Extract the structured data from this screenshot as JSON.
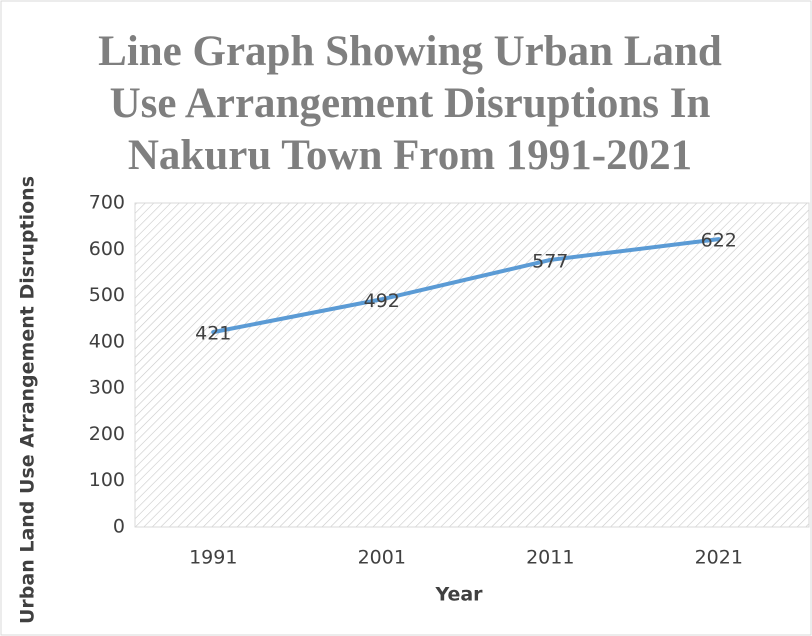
{
  "chart_data": {
    "type": "line",
    "title": "Line Graph Showing Urban Land Use Arrangement Disruptions In Nakuru Town From 1991-2021",
    "x_label": "Year",
    "y_label": "Urban Land Use Arrangement Disruptions",
    "categories": [
      "1991",
      "2001",
      "2011",
      "2021"
    ],
    "values": [
      421,
      492,
      577,
      622
    ],
    "color": "#5b9bd5",
    "ylim": [
      0,
      700
    ],
    "yticks": [
      0,
      100,
      200,
      300,
      400,
      500,
      600,
      700
    ],
    "grid": false
  }
}
